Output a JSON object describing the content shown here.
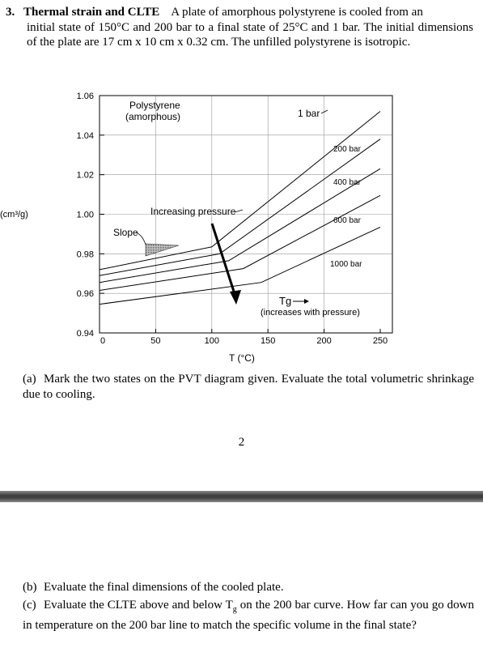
{
  "question": {
    "number": "3.",
    "title": "Thermal strain and CLTE",
    "first_line": "A plate of amorphous polystyrene is cooled from an",
    "body": "initial state of 150°C and 200 bar to a final state of 25°C and 1 bar. The initial dimensions of the plate are 17 cm x 10 cm x 0.32 cm. The unfilled polystyrene is isotropic."
  },
  "chart_data": {
    "type": "line",
    "title": "Polystyrene (amorphous)",
    "title_line1": "Polystyrene",
    "title_line2": "(amorphous)",
    "xlabel": "T (°C)",
    "ylabel": "(cm³/g)",
    "xlim": [
      0,
      250
    ],
    "ylim": [
      0.94,
      1.06
    ],
    "x_ticks": [
      "0",
      "50",
      "100",
      "150",
      "200",
      "250"
    ],
    "y_ticks": [
      "0.94",
      "0.96",
      "0.98",
      "1.00",
      "1.02",
      "1.04",
      "1.06"
    ],
    "grid": true,
    "series": [
      {
        "name": "1 bar",
        "points": [
          [
            0,
            0.972
          ],
          [
            100,
            0.9835
          ],
          [
            250,
            1.052
          ]
        ]
      },
      {
        "name": "200 bar",
        "points": [
          [
            0,
            0.969
          ],
          [
            107,
            0.98
          ],
          [
            250,
            1.038
          ]
        ]
      },
      {
        "name": "400 bar",
        "points": [
          [
            0,
            0.9655
          ],
          [
            115,
            0.9765
          ],
          [
            250,
            1.023
          ]
        ]
      },
      {
        "name": "600 bar",
        "points": [
          [
            0,
            0.9615
          ],
          [
            128,
            0.9725
          ],
          [
            250,
            1.0095
          ]
        ]
      },
      {
        "name": "1000 bar",
        "points": [
          [
            0,
            0.9545
          ],
          [
            144,
            0.9655
          ],
          [
            250,
            0.9935
          ]
        ]
      }
    ],
    "annotations": {
      "slope": "Slope",
      "increasing_pressure": "Increasing pressure",
      "tg": "Tg",
      "tg_note": "(increases with pressure)"
    }
  },
  "part_a": {
    "label": "(a)",
    "text": "Mark the two states on the PVT diagram given. Evaluate the total volumetric shrinkage due to cooling."
  },
  "page_number": "2",
  "part_b": {
    "label": "(b)",
    "text": "Evaluate the final dimensions of the cooled plate."
  },
  "part_c": {
    "label": "(c)",
    "text_before": "Evaluate the CLTE above and below T",
    "sub": "g",
    "text_after": " on the 200 bar curve. How far can you go down in temperature on the 200 bar line to match the specific volume in the final state?"
  }
}
